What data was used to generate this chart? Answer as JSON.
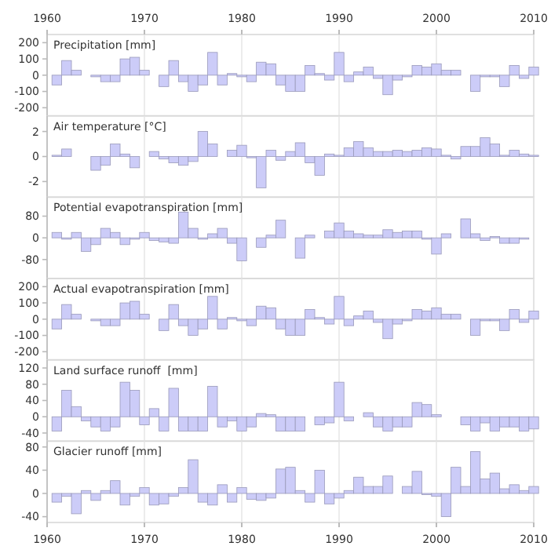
{
  "chart_data": [
    {
      "type": "bar",
      "title": "Precipitation [mm]",
      "x": [
        1961,
        1962,
        1963,
        1964,
        1965,
        1966,
        1967,
        1968,
        1969,
        1970,
        1971,
        1972,
        1973,
        1974,
        1975,
        1976,
        1977,
        1978,
        1979,
        1980,
        1981,
        1982,
        1983,
        1984,
        1985,
        1986,
        1987,
        1988,
        1989,
        1990,
        1991,
        1992,
        1993,
        1994,
        1995,
        1996,
        1997,
        1998,
        1999,
        2000,
        2001,
        2002,
        2003,
        2004,
        2005,
        2006,
        2007,
        2008,
        2009,
        2010
      ],
      "values": [
        -60,
        90,
        30,
        0,
        -10,
        -40,
        -40,
        100,
        110,
        30,
        0,
        -70,
        90,
        -40,
        -100,
        -60,
        140,
        -60,
        10,
        -10,
        -40,
        80,
        70,
        -60,
        -100,
        -100,
        60,
        10,
        -30,
        140,
        -40,
        20,
        50,
        -20,
        -120,
        -30,
        -10,
        60,
        50,
        70,
        30,
        30,
        0,
        -100,
        -10,
        -10,
        -70,
        60,
        -20,
        50
      ],
      "color": "#ccccf8",
      "xlim": [
        1960,
        2010
      ],
      "xticks": [
        1960,
        1970,
        1980,
        1990,
        2000,
        2010
      ],
      "x2lim": [
        1960,
        2010
      ],
      "x2ticks": [
        1960,
        1970,
        1980,
        1990,
        2000,
        2010
      ],
      "ylim": [
        -250,
        250
      ],
      "yticks": [
        -200,
        -100,
        0,
        100,
        200
      ],
      "grid": "x",
      "tick_labels": "y"
    },
    {
      "type": "bar",
      "title": "Air temperature [°C]",
      "x": [
        1961,
        1962,
        1963,
        1964,
        1965,
        1966,
        1967,
        1968,
        1969,
        1970,
        1971,
        1972,
        1973,
        1974,
        1975,
        1976,
        1977,
        1978,
        1979,
        1980,
        1981,
        1982,
        1983,
        1984,
        1985,
        1986,
        1987,
        1988,
        1989,
        1990,
        1991,
        1992,
        1993,
        1994,
        1995,
        1996,
        1997,
        1998,
        1999,
        2000,
        2001,
        2002,
        2003,
        2004,
        2005,
        2006,
        2007,
        2008,
        2009,
        2010
      ],
      "values": [
        0.1,
        0.6,
        0,
        0,
        -1.1,
        -0.7,
        1.0,
        0.2,
        -0.9,
        0,
        0.4,
        -0.2,
        -0.5,
        -0.7,
        -0.4,
        2.0,
        1.0,
        0,
        0.5,
        0.9,
        -0.1,
        -2.5,
        0.5,
        -0.3,
        0.4,
        1.1,
        -0.5,
        -1.5,
        0.2,
        0.1,
        0.7,
        1.2,
        0.7,
        0.4,
        0.4,
        0.5,
        0.4,
        0.5,
        0.7,
        0.6,
        0.1,
        -0.2,
        0.8,
        0.8,
        1.5,
        1.0,
        0.1,
        0.5,
        0.2,
        0.1
      ],
      "color": "#ccccf8",
      "xlim": [
        1960,
        2010
      ],
      "xticks": [
        1960,
        1970,
        1980,
        1990,
        2000,
        2010
      ],
      "ylim": [
        -3.25,
        3.25
      ],
      "yticks": [
        -2,
        0,
        2
      ],
      "grid": "x",
      "tick_labels": "y"
    },
    {
      "type": "bar",
      "title": "Potential evapotranspiration [mm]",
      "x": [
        1961,
        1962,
        1963,
        1964,
        1965,
        1966,
        1967,
        1968,
        1969,
        1970,
        1971,
        1972,
        1973,
        1974,
        1975,
        1976,
        1977,
        1978,
        1979,
        1980,
        1981,
        1982,
        1983,
        1984,
        1985,
        1986,
        1987,
        1988,
        1989,
        1990,
        1991,
        1992,
        1993,
        1994,
        1995,
        1996,
        1997,
        1998,
        1999,
        2000,
        2001,
        2002,
        2003,
        2004,
        2005,
        2006,
        2007,
        2008,
        2009,
        2010
      ],
      "values": [
        20,
        -5,
        20,
        -50,
        -25,
        35,
        20,
        -25,
        -5,
        20,
        -10,
        -15,
        -20,
        95,
        35,
        -5,
        15,
        35,
        -20,
        -85,
        0,
        -35,
        10,
        65,
        0,
        -75,
        10,
        0,
        25,
        55,
        25,
        15,
        10,
        10,
        30,
        20,
        25,
        25,
        -5,
        -60,
        15,
        0,
        70,
        15,
        -10,
        5,
        -20,
        -20,
        -5,
        0
      ],
      "color": "#ccccf8",
      "xlim": [
        1960,
        2010
      ],
      "xticks": [
        1960,
        1970,
        1980,
        1990,
        2000,
        2010
      ],
      "ylim": [
        -150,
        150
      ],
      "yticks": [
        -80,
        0,
        80
      ],
      "grid": "x",
      "tick_labels": "y"
    },
    {
      "type": "bar",
      "title": "Actual evapotranspiration [mm]",
      "x": [
        1961,
        1962,
        1963,
        1964,
        1965,
        1966,
        1967,
        1968,
        1969,
        1970,
        1971,
        1972,
        1973,
        1974,
        1975,
        1976,
        1977,
        1978,
        1979,
        1980,
        1981,
        1982,
        1983,
        1984,
        1985,
        1986,
        1987,
        1988,
        1989,
        1990,
        1991,
        1992,
        1993,
        1994,
        1995,
        1996,
        1997,
        1998,
        1999,
        2000,
        2001,
        2002,
        2003,
        2004,
        2005,
        2006,
        2007,
        2008,
        2009,
        2010
      ],
      "values": [
        -60,
        90,
        30,
        0,
        -10,
        -40,
        -40,
        100,
        110,
        30,
        0,
        -70,
        90,
        -40,
        -100,
        -60,
        140,
        -60,
        10,
        -10,
        -40,
        80,
        70,
        -60,
        -100,
        -100,
        60,
        10,
        -30,
        140,
        -40,
        20,
        50,
        -20,
        -120,
        -30,
        -10,
        60,
        50,
        70,
        30,
        30,
        0,
        -100,
        -10,
        -10,
        -70,
        60,
        -20,
        50
      ],
      "color": "#ccccf8",
      "xlim": [
        1960,
        2010
      ],
      "xticks": [
        1960,
        1970,
        1980,
        1990,
        2000,
        2010
      ],
      "ylim": [
        -250,
        250
      ],
      "yticks": [
        -200,
        -100,
        0,
        100,
        200
      ],
      "grid": "x",
      "tick_labels": "y"
    },
    {
      "type": "bar",
      "title": "Land surface runoff  [mm]",
      "x": [
        1961,
        1962,
        1963,
        1964,
        1965,
        1966,
        1967,
        1968,
        1969,
        1970,
        1971,
        1972,
        1973,
        1974,
        1975,
        1976,
        1977,
        1978,
        1979,
        1980,
        1981,
        1982,
        1983,
        1984,
        1985,
        1986,
        1987,
        1988,
        1989,
        1990,
        1991,
        1992,
        1993,
        1994,
        1995,
        1996,
        1997,
        1998,
        1999,
        2000,
        2001,
        2002,
        2003,
        2004,
        2005,
        2006,
        2007,
        2008,
        2009,
        2010
      ],
      "values": [
        -35,
        65,
        25,
        -10,
        -25,
        -35,
        -25,
        85,
        65,
        -20,
        20,
        -35,
        70,
        -35,
        -35,
        -35,
        75,
        -25,
        -10,
        -35,
        -25,
        8,
        5,
        -35,
        -35,
        -35,
        0,
        -20,
        -15,
        85,
        -10,
        0,
        10,
        -25,
        -35,
        -25,
        -25,
        35,
        30,
        5,
        0,
        0,
        -20,
        -35,
        -15,
        -35,
        -25,
        -25,
        -35,
        -30
      ],
      "color": "#ccccf8",
      "xlim": [
        1960,
        2010
      ],
      "xticks": [
        1960,
        1970,
        1980,
        1990,
        2000,
        2010
      ],
      "ylim": [
        -60,
        140
      ],
      "yticks": [
        -40,
        0,
        40,
        80,
        120
      ],
      "grid": "x",
      "tick_labels": "y"
    },
    {
      "type": "bar",
      "title": "Glacier runoff [mm]",
      "x": [
        1961,
        1962,
        1963,
        1964,
        1965,
        1966,
        1967,
        1968,
        1969,
        1970,
        1971,
        1972,
        1973,
        1974,
        1975,
        1976,
        1977,
        1978,
        1979,
        1980,
        1981,
        1982,
        1983,
        1984,
        1985,
        1986,
        1987,
        1988,
        1989,
        1990,
        1991,
        1992,
        1993,
        1994,
        1995,
        1996,
        1997,
        1998,
        1999,
        2000,
        2001,
        2002,
        2003,
        2004,
        2005,
        2006,
        2007,
        2008,
        2009,
        2010
      ],
      "values": [
        -15,
        -5,
        -35,
        5,
        -12,
        5,
        22,
        -20,
        -5,
        10,
        -20,
        -18,
        -5,
        10,
        58,
        -15,
        -20,
        15,
        -15,
        10,
        -10,
        -12,
        -8,
        42,
        45,
        5,
        -15,
        40,
        -18,
        -8,
        5,
        28,
        12,
        12,
        30,
        0,
        12,
        38,
        -2,
        -5,
        -40,
        45,
        12,
        72,
        25,
        35,
        8,
        15,
        5,
        12
      ],
      "color": "#ccccf8",
      "xlim": [
        1960,
        2010
      ],
      "xticks": [
        1960,
        1970,
        1980,
        1990,
        2000,
        2010
      ],
      "ylim": [
        -50,
        90
      ],
      "yticks": [
        -40,
        0,
        40,
        80
      ],
      "grid": "x"
    }
  ]
}
